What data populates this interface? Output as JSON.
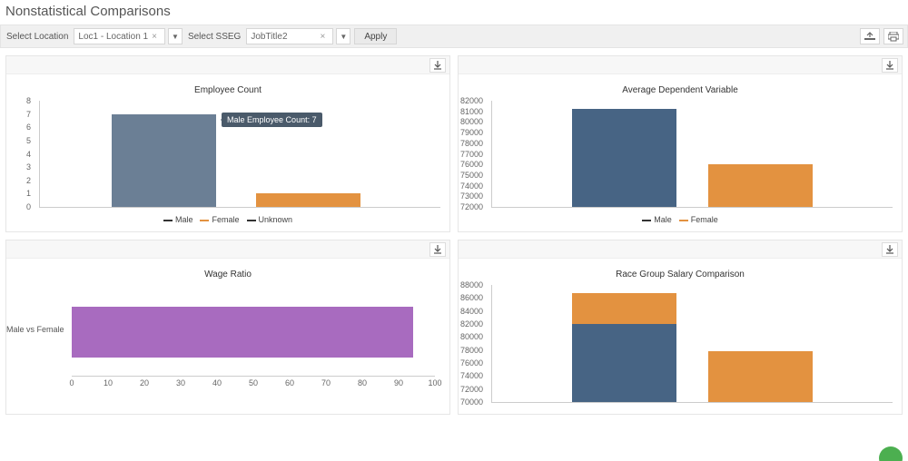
{
  "page": {
    "title": "Nonstatistical Comparisons"
  },
  "filters": {
    "location_label": "Select Location",
    "location_value": "Loc1 - Location 1",
    "sseg_label": "Select SSEG",
    "sseg_value": "JobTitle2",
    "apply_label": "Apply"
  },
  "colors": {
    "male": "#6b7f95",
    "male_dark": "#476484",
    "female": "#e39240",
    "unknown": "#333333",
    "purple": "#a86bbf",
    "tooltip_bg": "#4a5a6a",
    "card_border": "#e6e6e6",
    "grid_border": "#cccccc"
  },
  "charts": {
    "employee_count": {
      "title": "Employee Count",
      "type": "bar",
      "y_min": 0,
      "y_max": 8,
      "y_step": 1,
      "series": [
        {
          "name": "Male",
          "value": 7,
          "color": "#6b7f95"
        },
        {
          "name": "Female",
          "value": 1,
          "color": "#e39240"
        }
      ],
      "legend": [
        "Male",
        "Female",
        "Unknown"
      ],
      "legend_colors": [
        "#333333",
        "#e39240",
        "#333333"
      ],
      "tooltip": "Male Employee Count: 7"
    },
    "avg_dep_var": {
      "title": "Average Dependent Variable",
      "type": "bar",
      "y_min": 72000,
      "y_max": 82000,
      "y_step": 1000,
      "series": [
        {
          "name": "Male",
          "value": 81200,
          "color": "#476484"
        },
        {
          "name": "Female",
          "value": 76000,
          "color": "#e39240"
        }
      ],
      "legend": [
        "Male",
        "Female"
      ],
      "legend_colors": [
        "#333333",
        "#e39240"
      ]
    },
    "wage_ratio": {
      "title": "Wage Ratio",
      "type": "hbar",
      "x_min": 0,
      "x_max": 100,
      "x_step": 10,
      "category": "Male vs Female",
      "value": 94,
      "color": "#a86bbf"
    },
    "race_group": {
      "title": "Race Group Salary Comparison",
      "type": "bar_stacked",
      "y_min": 70000,
      "y_max": 88000,
      "y_step": 2000,
      "bars": [
        {
          "segments": [
            {
              "from": 70000,
              "to": 82000,
              "color": "#476484"
            },
            {
              "from": 82000,
              "to": 86800,
              "color": "#e39240"
            }
          ]
        },
        {
          "segments": [
            {
              "from": 70000,
              "to": 77800,
              "color": "#e39240"
            }
          ]
        }
      ]
    }
  }
}
